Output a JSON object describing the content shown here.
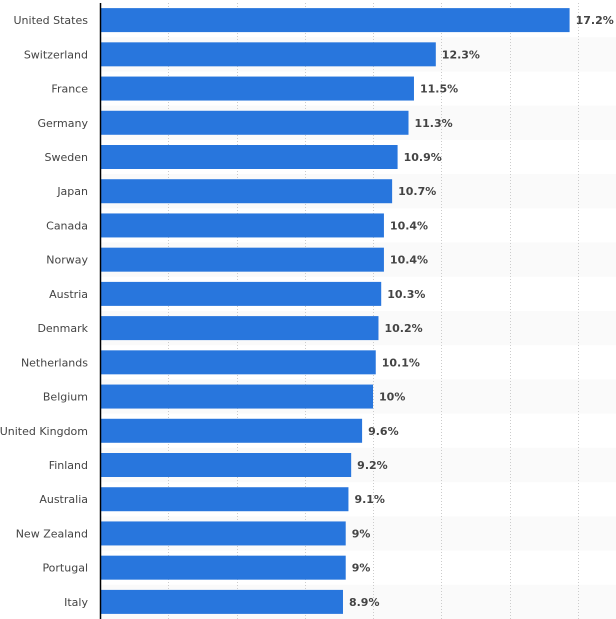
{
  "chart_data": {
    "type": "bar",
    "orientation": "horizontal",
    "title": "",
    "xlabel": "",
    "ylabel": "",
    "categories": [
      "United States",
      "Switzerland",
      "France",
      "Germany",
      "Sweden",
      "Japan",
      "Canada",
      "Norway",
      "Austria",
      "Denmark",
      "Netherlands",
      "Belgium",
      "United Kingdom",
      "Finland",
      "Australia",
      "New Zealand",
      "Portugal",
      "Italy"
    ],
    "values": [
      17.2,
      12.3,
      11.5,
      11.3,
      10.9,
      10.7,
      10.4,
      10.4,
      10.3,
      10.2,
      10.1,
      10,
      9.6,
      9.2,
      9.1,
      9,
      9,
      8.9
    ],
    "value_labels": [
      "17.2%",
      "12.3%",
      "11.5%",
      "11.3%",
      "10.9%",
      "10.7%",
      "10.4%",
      "10.4%",
      "10.3%",
      "10.2%",
      "10.1%",
      "10%",
      "9.6%",
      "9.2%",
      "9.1%",
      "9%",
      "9%",
      "8.9%"
    ],
    "xlim": [
      0,
      18.9
    ],
    "grid_step": 2.5,
    "grid": true,
    "legend": "none",
    "colors": {
      "bar": "#2876dd",
      "band": "#fafafa",
      "grid": "#cccccc",
      "axis": "#000000",
      "text": "#444444"
    }
  }
}
